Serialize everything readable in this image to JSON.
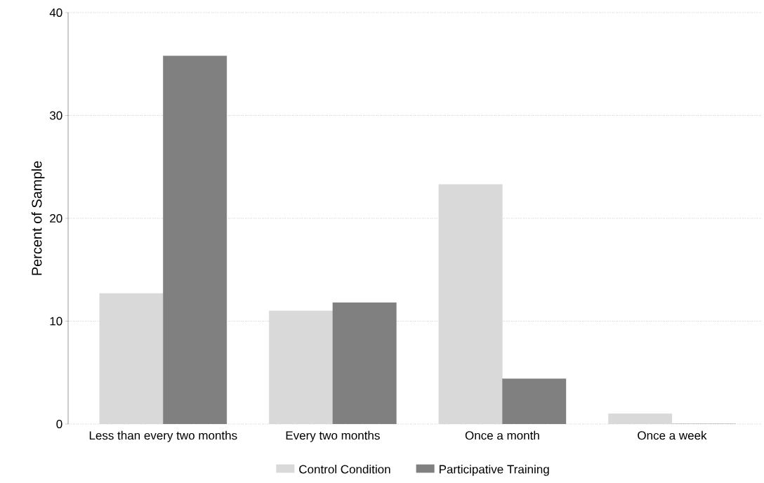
{
  "chart_data": {
    "type": "bar",
    "ylabel": "Percent of Sample",
    "categories": [
      "Less than every two months",
      "Every two months",
      "Once a month",
      "Once a week"
    ],
    "series": [
      {
        "name": "Control Condition",
        "color": "#d9d9d9",
        "values": [
          12.7,
          11.0,
          23.3,
          1.0
        ]
      },
      {
        "name": "Participative Training",
        "color": "#808080",
        "values": [
          35.8,
          11.8,
          4.4,
          0
        ]
      }
    ],
    "ylim": [
      0,
      40
    ],
    "yticks": [
      0,
      10,
      20,
      30,
      40
    ],
    "grid": "y",
    "legend": "bottom"
  }
}
